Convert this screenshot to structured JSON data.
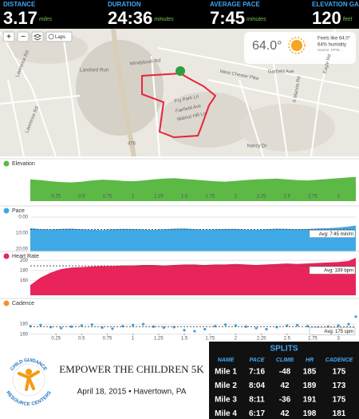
{
  "stats": [
    {
      "label": "DISTANCE",
      "value": "3.17",
      "unit": "miles"
    },
    {
      "label": "DURATION",
      "value": "24:36",
      "unit": "minutes"
    },
    {
      "label": "AVERAGE PACE",
      "value": "7:45",
      "unit": "minutes"
    },
    {
      "label": "ELEVATION GAIN",
      "value": "120",
      "unit": "feet"
    }
  ],
  "map": {
    "controls": {
      "zoom_in": "+",
      "zoom_out": "−",
      "laps": "Laps"
    },
    "weather": {
      "temperature": "64.0°",
      "feels": "Feels like 64.0°",
      "humidity": "64% humidity",
      "source": "Source: KPHL"
    },
    "labels": [
      "Lansford Run",
      "West Chester Pike",
      "Windybush Rd",
      "Lawrence Rd",
      "Lawrence Rd",
      "Eagle Rd",
      "S Manoa Rd",
      "Garfield Ave",
      "Walnut Hill Ln",
      "Fairfield Ave",
      "Fry Park Ln",
      "476",
      "Nancy Dr"
    ]
  },
  "chart_data": [
    {
      "type": "area",
      "title": "Elevation",
      "color": "#5cb946",
      "icon_color": "#5cb946",
      "x": [
        0,
        0.1,
        0.2,
        0.3,
        0.4,
        0.5,
        0.6,
        0.7,
        0.8,
        0.9,
        1,
        1.1,
        1.2,
        1.3,
        1.4,
        1.5,
        1.6,
        1.7,
        1.8,
        1.9,
        2,
        2.1,
        2.2,
        2.3,
        2.4,
        2.5,
        2.6,
        2.7,
        2.8,
        2.9,
        3,
        3.1,
        3.17
      ],
      "values": [
        395,
        393,
        390,
        388,
        387,
        389,
        392,
        394,
        393,
        391,
        390,
        392,
        395,
        397,
        398,
        396,
        394,
        392,
        390,
        389,
        391,
        393,
        395,
        396,
        397,
        395,
        393,
        392,
        394,
        396,
        398,
        400,
        401
      ],
      "xlim": [
        0,
        3.17
      ],
      "ylim": [
        340,
        420
      ],
      "xticks": [
        0.25,
        0.5,
        0.75,
        1,
        1.25,
        1.5,
        1.75,
        2,
        2.25,
        2.5,
        2.75,
        3
      ]
    },
    {
      "type": "area",
      "title": "Pace",
      "color": "#3fa9e6",
      "icon_color": "#3fa9e6",
      "inverted": true,
      "x": [
        0,
        0.1,
        0.2,
        0.3,
        0.4,
        0.5,
        0.6,
        0.7,
        0.8,
        0.9,
        1,
        1.1,
        1.2,
        1.3,
        1.4,
        1.5,
        1.6,
        1.7,
        1.8,
        1.9,
        2,
        2.1,
        2.2,
        2.3,
        2.4,
        2.5,
        2.6,
        2.7,
        2.8,
        2.9,
        3,
        3.1,
        3.17
      ],
      "values": [
        7.2,
        7.8,
        8.0,
        7.6,
        7.5,
        7.9,
        8.2,
        8.4,
        7.8,
        7.6,
        7.7,
        8.0,
        8.3,
        7.9,
        7.5,
        7.4,
        7.8,
        8.1,
        7.9,
        7.7,
        7.6,
        8.0,
        8.2,
        7.8,
        7.5,
        7.6,
        7.9,
        7.7,
        7.4,
        7.2,
        6.8,
        6.2,
        5.5
      ],
      "xlim": [
        0,
        3.17
      ],
      "ylim": [
        -1,
        21.5
      ],
      "yticks": [
        {
          "value": 0,
          "label": "0:00"
        },
        {
          "value": 10,
          "label": "10:00"
        },
        {
          "value": 20,
          "label": "20:00"
        }
      ],
      "avg": {
        "value": 7.75,
        "label": "Avg: 7:45 min/m"
      }
    },
    {
      "type": "area",
      "title": "Heart Rate",
      "color": "#e8245a",
      "icon_color": "#e8245a",
      "x": [
        0,
        0.1,
        0.2,
        0.3,
        0.4,
        0.5,
        0.6,
        0.7,
        0.8,
        0.9,
        1,
        1.1,
        1.2,
        1.3,
        1.4,
        1.5,
        1.6,
        1.7,
        1.8,
        1.9,
        2,
        2.1,
        2.2,
        2.3,
        2.4,
        2.5,
        2.6,
        2.7,
        2.8,
        2.9,
        3,
        3.1,
        3.17
      ],
      "values": [
        150,
        165,
        175,
        182,
        185,
        186,
        187,
        188,
        188,
        189,
        189,
        190,
        190,
        189,
        190,
        191,
        191,
        190,
        191,
        191,
        192,
        191,
        190,
        191,
        192,
        193,
        192,
        193,
        194,
        195,
        196,
        198,
        204
      ],
      "xlim": [
        0,
        3.17
      ],
      "ylim": [
        131,
        205
      ],
      "yticks": [
        160,
        180,
        200
      ],
      "avg": {
        "value": 189,
        "label": "Avg: 189 bpm"
      }
    },
    {
      "type": "scatter",
      "title": "Cadence",
      "color": "#3a9fe0",
      "icon_color": "#f0932b",
      "x": [
        0,
        0.1,
        0.2,
        0.3,
        0.4,
        0.5,
        0.6,
        0.7,
        0.8,
        0.9,
        1,
        1.1,
        1.2,
        1.3,
        1.4,
        1.5,
        1.6,
        1.7,
        1.8,
        1.9,
        2,
        2.1,
        2.2,
        2.3,
        2.4,
        2.5,
        2.6,
        2.7,
        2.8,
        2.9,
        3,
        3.1,
        3.17
      ],
      "values": [
        176,
        178,
        174,
        172,
        175,
        177,
        179,
        173,
        171,
        176,
        178,
        180,
        175,
        173,
        174,
        168,
        166,
        170,
        176,
        179,
        177,
        175,
        172,
        170,
        174,
        177,
        178,
        176,
        173,
        175,
        177,
        180,
        195
      ],
      "xlim": [
        0,
        3.17
      ],
      "ylim": [
        158,
        212
      ],
      "yticks": [
        160,
        180
      ],
      "xticks": [
        0.25,
        0.5,
        0.75,
        1,
        1.25,
        1.5,
        1.75,
        2,
        2.25,
        2.5,
        2.75,
        3
      ],
      "avg": {
        "value": 175,
        "label": "Avg: 175 spm"
      }
    }
  ],
  "event": {
    "org_top": "CHILD GUIDANCE",
    "org_bottom": "RESOURCE CENTERS",
    "name": "EMPOWER THE CHILDREN 5K",
    "details": "April 18, 2015 • Havertown, PA"
  },
  "splits": {
    "title": "SPLITS",
    "columns": [
      "NAME",
      "PACE",
      "CLIMB",
      "HR",
      "CADENCE"
    ],
    "rows": [
      [
        "Mile 1",
        "7:16",
        "-48",
        "185",
        "175"
      ],
      [
        "Mile 2",
        "8:04",
        "42",
        "189",
        "173"
      ],
      [
        "Mile 3",
        "8:11",
        "-36",
        "191",
        "175"
      ],
      [
        "Mile 4",
        "6:17",
        "42",
        "198",
        "181"
      ]
    ]
  }
}
